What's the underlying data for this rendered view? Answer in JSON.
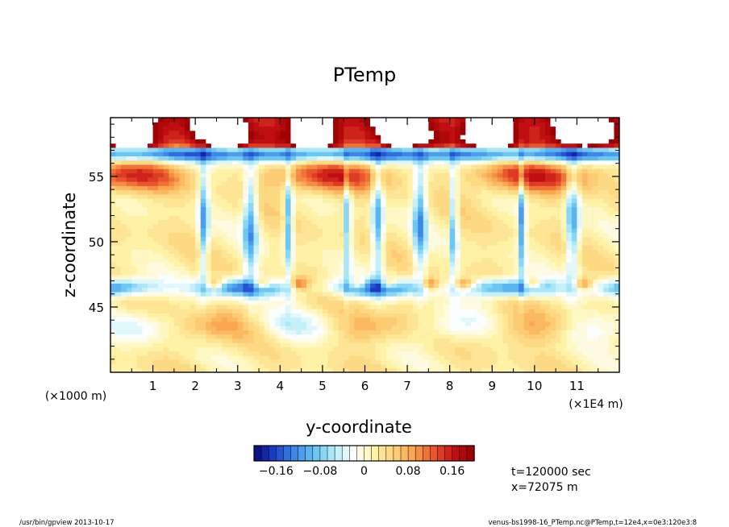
{
  "chart_data": {
    "type": "heatmap",
    "title": "PTemp",
    "xlabel": "y-coordinate",
    "ylabel": "z-coordinate",
    "x_axis": {
      "range": [
        0,
        12
      ],
      "ticks": [
        1,
        2,
        3,
        4,
        5,
        6,
        7,
        8,
        9,
        10,
        11
      ],
      "tick_labels": [
        "1",
        "2",
        "3",
        "4",
        "5",
        "6",
        "7",
        "8",
        "9",
        "10",
        "11"
      ],
      "unit_label": "(×1E4 m)"
    },
    "y_axis": {
      "range": [
        40,
        59.5
      ],
      "ticks": [
        45,
        50,
        55
      ],
      "tick_labels": [
        "45",
        "50",
        "55"
      ],
      "unit_label": "(×1000 m)"
    },
    "colorbar": {
      "range": [
        -0.2,
        0.2
      ],
      "levels": 30,
      "ticks": [
        -0.16,
        -0.08,
        0,
        0.08,
        0.16
      ],
      "tick_labels": [
        "−0.16",
        "−0.08",
        "0",
        "0.08",
        "0.16"
      ],
      "colors": [
        "#08087a",
        "#1c3fc8",
        "#3e86e6",
        "#62c3f2",
        "#b5ecf8",
        "#ffffff",
        "#fff3a8",
        "#fdd27a",
        "#f8a14a",
        "#e9542c",
        "#c41014",
        "#960000"
      ]
    },
    "annotations": {
      "time": "t=120000 sec",
      "xpos": "x=72075 m"
    },
    "features": {
      "strong_positive_layer_z": [
        57.3,
        59.5
      ],
      "negative_band_z": 46.5,
      "positive_band_z": 55,
      "blob_y_centers": [
        2.2,
        3.3,
        4.2,
        5.6,
        6.3,
        7.3,
        8.1,
        9.7,
        10.9
      ]
    }
  },
  "footer": {
    "left": "/usr/bin/gpview   2013-10-17",
    "right": "venus-bs1998-16_PTemp.nc@PTemp,t=12e4,x=0e3:120e3:8"
  }
}
